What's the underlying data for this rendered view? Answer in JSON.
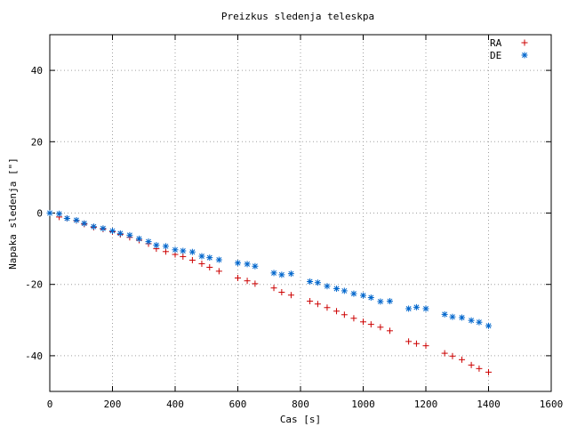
{
  "chart_data": {
    "type": "scatter",
    "title": "Preizkus sledenja teleskpa",
    "xlabel": "Cas [s]",
    "ylabel": "Napaka sledenja [\"]",
    "xlim": [
      0,
      1600
    ],
    "ylim": [
      -50,
      50
    ],
    "xticks": [
      0,
      200,
      400,
      600,
      800,
      1000,
      1200,
      1400,
      1600
    ],
    "yticks": [
      -40,
      -20,
      0,
      20,
      40
    ],
    "grid": true,
    "legend_position": "top-right",
    "series": [
      {
        "name": "RA",
        "marker": "plus",
        "color": "#cc0000",
        "x": [
          0,
          30,
          55,
          85,
          110,
          140,
          170,
          200,
          225,
          255,
          285,
          315,
          340,
          370,
          400,
          425,
          455,
          485,
          510,
          540,
          600,
          630,
          655,
          715,
          740,
          770,
          830,
          855,
          885,
          915,
          940,
          970,
          1000,
          1025,
          1055,
          1085,
          1145,
          1170,
          1200,
          1260,
          1285,
          1315,
          1345,
          1370,
          1400
        ],
        "y": [
          0,
          -1.1,
          -1.5,
          -2.1,
          -3.1,
          -4.0,
          -4.5,
          -5.2,
          -6.0,
          -6.8,
          -7.6,
          -8.6,
          -10.0,
          -10.8,
          -11.6,
          -12.2,
          -13.2,
          -14.2,
          -15.2,
          -16.3,
          -18.2,
          -19.0,
          -19.8,
          -21.0,
          -22.2,
          -23.0,
          -24.7,
          -25.5,
          -26.5,
          -27.5,
          -28.5,
          -29.5,
          -30.5,
          -31.2,
          -32.0,
          -33.0,
          -36.0,
          -36.6,
          -37.2,
          -39.3,
          -40.1,
          -41.1,
          -42.6,
          -43.6,
          -44.6
        ]
      },
      {
        "name": "DE",
        "marker": "star",
        "color": "#0066cc",
        "x": [
          0,
          30,
          55,
          85,
          110,
          140,
          170,
          200,
          225,
          255,
          285,
          315,
          340,
          370,
          400,
          425,
          455,
          485,
          510,
          540,
          600,
          630,
          655,
          715,
          740,
          770,
          830,
          855,
          885,
          915,
          940,
          970,
          1000,
          1025,
          1055,
          1085,
          1145,
          1170,
          1200,
          1260,
          1285,
          1315,
          1345,
          1370,
          1400
        ],
        "y": [
          0,
          -0.2,
          -1.5,
          -2.0,
          -2.9,
          -3.8,
          -4.3,
          -5.0,
          -5.7,
          -6.2,
          -7.2,
          -8.0,
          -9.0,
          -9.3,
          -10.3,
          -10.6,
          -10.9,
          -12.1,
          -12.5,
          -13.1,
          -14.0,
          -14.3,
          -14.9,
          -16.8,
          -17.3,
          -17.0,
          -19.2,
          -19.5,
          -20.5,
          -21.2,
          -21.8,
          -22.6,
          -23.1,
          -23.7,
          -24.8,
          -24.7,
          -26.8,
          -26.4,
          -26.8,
          -28.4,
          -29.1,
          -29.3,
          -30.1,
          -30.6,
          -31.6
        ]
      }
    ]
  }
}
